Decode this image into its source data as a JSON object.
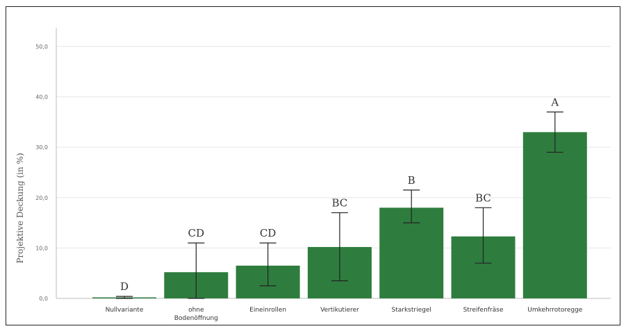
{
  "chart_data": {
    "type": "bar",
    "title": "",
    "xlabel": "",
    "ylabel": "Projektive Deckung (in %)",
    "ylim": [
      0,
      50
    ],
    "yticks": [
      0,
      10,
      20,
      30,
      40,
      50
    ],
    "ytick_labels": [
      "0,0",
      "10,0",
      "20,0",
      "30,0",
      "40,0",
      "50,0"
    ],
    "grid": "horizontal",
    "bar_color": "#2e7d3e",
    "categories": [
      {
        "lines": [
          "Nullvariante"
        ]
      },
      {
        "lines": [
          "ohne",
          "Bodenöffnung"
        ]
      },
      {
        "lines": [
          "Eineinrollen"
        ]
      },
      {
        "lines": [
          "Vertikutierer"
        ]
      },
      {
        "lines": [
          "Starkstriegel"
        ]
      },
      {
        "lines": [
          "Streifenfräse"
        ]
      },
      {
        "lines": [
          "Umkehrrotoregge"
        ]
      }
    ],
    "values": [
      0.2,
      5.2,
      6.5,
      10.2,
      18,
      12.3,
      33
    ],
    "error_low": [
      0,
      0,
      2.5,
      3.5,
      15,
      7,
      29
    ],
    "error_high": [
      0.4,
      11,
      11,
      17,
      21.5,
      18,
      37
    ],
    "significance": [
      "D",
      "CD",
      "CD",
      "BC",
      "B",
      "BC",
      "A"
    ]
  }
}
